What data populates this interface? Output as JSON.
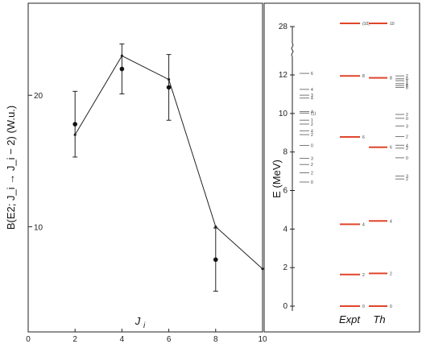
{
  "chart_data": [
    {
      "type": "scatter",
      "title": "",
      "xlabel": "J",
      "xlabel_sub": "i",
      "ylabel": "B(E2; J_i → J_i − 2) (W.u.)",
      "xlim": [
        0,
        10
      ],
      "ylim": [
        2,
        27
      ],
      "x_ticks": [
        0,
        2,
        4,
        6,
        8,
        10
      ],
      "y_ticks": [
        10,
        20
      ],
      "series": [
        {
          "style": "points with error bars",
          "x": [
            2,
            4,
            6,
            8
          ],
          "y": [
            17.8,
            22.0,
            20.6,
            7.5
          ],
          "err": [
            2.5,
            1.9,
            2.5,
            2.4
          ]
        },
        {
          "style": "line",
          "x": [
            2,
            4,
            6,
            8,
            10
          ],
          "y": [
            17.0,
            23.0,
            21.2,
            10.0,
            6.8
          ]
        }
      ]
    },
    {
      "type": "level_scheme",
      "ylabel": "E (MeV)",
      "ylim": [
        0,
        12.8
      ],
      "y_ticks": [
        0,
        2,
        4,
        6,
        8,
        10,
        12
      ],
      "break_tick": "28",
      "columns": [
        {
          "name": "Expt",
          "yrast": [
            {
              "J": "0",
              "E": 0.0
            },
            {
              "J": "2",
              "E": 1.64
            },
            {
              "J": "4",
              "E": 4.25
            },
            {
              "J": "6",
              "E": 8.78
            },
            {
              "J": "8",
              "E": 11.95
            },
            {
              "J": "(10)",
              "E": 28.0
            }
          ],
          "others": [
            {
              "J": "0",
              "E": 6.44
            },
            {
              "J": "2",
              "E": 6.92
            },
            {
              "J": "2",
              "E": 7.35
            },
            {
              "J": "3",
              "E": 7.67
            },
            {
              "J": "0",
              "E": 8.34
            },
            {
              "J": "2",
              "E": 8.9
            },
            {
              "J": "4",
              "E": 9.1
            },
            {
              "J": "1",
              "E": 9.65
            },
            {
              "J": "2",
              "E": 9.45
            },
            {
              "J": "(1)",
              "E": 10.02
            },
            {
              "J": "4",
              "E": 10.1
            },
            {
              "J": "4",
              "E": 10.8
            },
            {
              "J": "3",
              "E": 10.95
            },
            {
              "J": "4",
              "E": 11.25
            },
            {
              "J": "6",
              "E": 12.08
            }
          ]
        },
        {
          "name": "Th",
          "yrast": [
            {
              "J": "0",
              "E": 0.0
            },
            {
              "J": "2",
              "E": 1.7
            },
            {
              "J": "4",
              "E": 4.42
            },
            {
              "J": "6",
              "E": 8.25
            },
            {
              "J": "8",
              "E": 11.85
            },
            {
              "J": "10",
              "E": 28.0
            }
          ],
          "others": [
            {
              "J": "2",
              "E": 6.6
            },
            {
              "J": "3",
              "E": 6.75
            },
            {
              "J": "0",
              "E": 7.7
            },
            {
              "J": "2",
              "E": 8.2
            },
            {
              "J": "4",
              "E": 8.35
            },
            {
              "J": "2",
              "E": 8.8
            },
            {
              "J": "3",
              "E": 9.35
            },
            {
              "J": "0",
              "E": 9.75
            },
            {
              "J": "2",
              "E": 9.95
            },
            {
              "J": "8",
              "E": 11.35
            },
            {
              "J": "6",
              "E": 11.45
            },
            {
              "J": "4",
              "E": 11.55
            },
            {
              "J": "2",
              "E": 11.7
            },
            {
              "J": "0",
              "E": 11.8
            },
            {
              "J": "2",
              "E": 11.95
            }
          ]
        }
      ]
    }
  ]
}
